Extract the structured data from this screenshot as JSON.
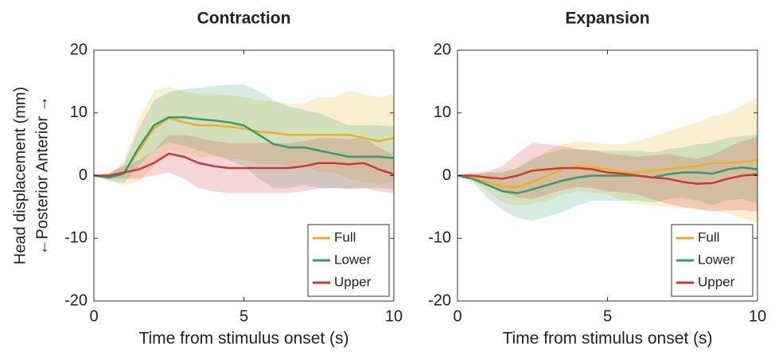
{
  "chart_data": [
    {
      "type": "line",
      "title": "Contraction",
      "xlabel": "Time from stimulus onset (s)",
      "ylabel": [
        "Head displacement (mm)",
        "←Posterior  Anterior →"
      ],
      "x": [
        0,
        0.5,
        1,
        1.5,
        2,
        2.5,
        3,
        3.5,
        4,
        4.5,
        5,
        5.5,
        6,
        6.5,
        7,
        7.5,
        8,
        8.5,
        9,
        9.5,
        10
      ],
      "xlim": [
        0,
        10
      ],
      "xticks": [
        0,
        5,
        10
      ],
      "ylim": [
        -20,
        20
      ],
      "yticks": [
        -20,
        -10,
        0,
        10,
        20
      ],
      "legend": "lower right",
      "series": [
        {
          "name": "Full",
          "color": "#edb120",
          "values": [
            0,
            -0.3,
            0.5,
            4,
            7.5,
            9.2,
            8.5,
            8,
            8,
            7.8,
            7.5,
            7,
            6.8,
            6.5,
            6.5,
            6.5,
            6.5,
            6.5,
            6,
            5.5,
            6
          ],
          "sd": [
            0,
            0.5,
            2,
            5,
            6,
            5,
            5,
            5,
            5,
            5,
            5,
            5,
            5,
            5,
            5,
            6,
            6,
            7,
            7,
            7,
            7
          ]
        },
        {
          "name": "Lower",
          "color": "#2e9e6b",
          "values": [
            0,
            -0.3,
            0.3,
            4.5,
            8,
            9.3,
            9.3,
            9,
            8.8,
            8.5,
            8,
            6.5,
            5,
            4.5,
            4.5,
            4,
            3.5,
            3,
            3,
            3,
            2.8
          ],
          "sd": [
            0,
            0.5,
            1.5,
            3,
            4,
            4,
            4.5,
            5,
            5.5,
            6,
            6.5,
            7,
            7,
            6.5,
            6,
            6,
            5.5,
            5,
            5,
            5,
            5
          ]
        },
        {
          "name": "Upper",
          "color": "#d03535",
          "values": [
            0,
            0,
            0.5,
            1,
            2,
            3.5,
            3,
            2,
            1.5,
            1.2,
            1.2,
            1.2,
            1.2,
            1.2,
            1.5,
            2,
            2,
            1.8,
            2,
            1,
            0.2
          ],
          "sd": [
            0,
            0.5,
            1,
            1.5,
            2,
            3,
            3.5,
            4,
            4,
            4,
            4,
            4,
            4,
            4,
            4,
            4,
            4,
            4,
            4,
            3.5,
            3
          ]
        }
      ]
    },
    {
      "type": "line",
      "title": "Expansion",
      "xlabel": "Time from stimulus onset (s)",
      "x": [
        0,
        0.5,
        1,
        1.5,
        2,
        2.5,
        3,
        3.5,
        4,
        4.5,
        5,
        5.5,
        6,
        6.5,
        7,
        7.5,
        8,
        8.5,
        9,
        9.5,
        10
      ],
      "xlim": [
        0,
        10
      ],
      "xticks": [
        0,
        5,
        10
      ],
      "ylim": [
        -20,
        20
      ],
      "yticks": [
        -20,
        -10,
        0,
        10,
        20
      ],
      "legend": "lower right",
      "series": [
        {
          "name": "Full",
          "color": "#edb120",
          "values": [
            0,
            -0.3,
            -1,
            -1.8,
            -1.8,
            -1,
            0,
            1,
            1.5,
            1.3,
            1,
            0.5,
            0.5,
            0.8,
            1,
            1.3,
            1.5,
            2,
            2,
            2.2,
            2.5
          ],
          "sd": [
            0,
            0.5,
            1.5,
            2.5,
            3,
            3.5,
            4,
            4,
            4,
            4,
            4,
            4.5,
            5,
            5.5,
            6,
            6.5,
            7,
            7.5,
            8,
            9,
            10
          ]
        },
        {
          "name": "Lower",
          "color": "#2e9e6b",
          "values": [
            0,
            -0.5,
            -1.5,
            -2.5,
            -2.8,
            -2.2,
            -1.5,
            -0.8,
            -0.3,
            0,
            0,
            0,
            0,
            -0.3,
            0.2,
            0.5,
            0.5,
            0.3,
            1,
            1.3,
            1
          ],
          "sd": [
            0,
            0.5,
            2,
            3,
            4,
            5,
            5,
            5,
            4.5,
            4,
            4,
            4,
            4,
            4,
            4,
            4,
            4.5,
            5,
            5,
            5,
            5.5
          ]
        },
        {
          "name": "Upper",
          "color": "#d03535",
          "values": [
            0,
            0,
            -0.3,
            -0.5,
            0,
            0.8,
            1,
            1.2,
            1.2,
            1,
            0.5,
            0.3,
            0,
            -0.3,
            -0.5,
            -1,
            -1.3,
            -1.2,
            -0.5,
            0,
            0.2
          ],
          "sd": [
            0,
            0.5,
            1,
            2,
            3.5,
            4.5,
            4,
            3.5,
            3,
            3,
            3,
            3,
            3,
            3.5,
            4,
            4,
            4,
            4.5,
            5,
            5.5,
            6
          ]
        }
      ]
    }
  ]
}
